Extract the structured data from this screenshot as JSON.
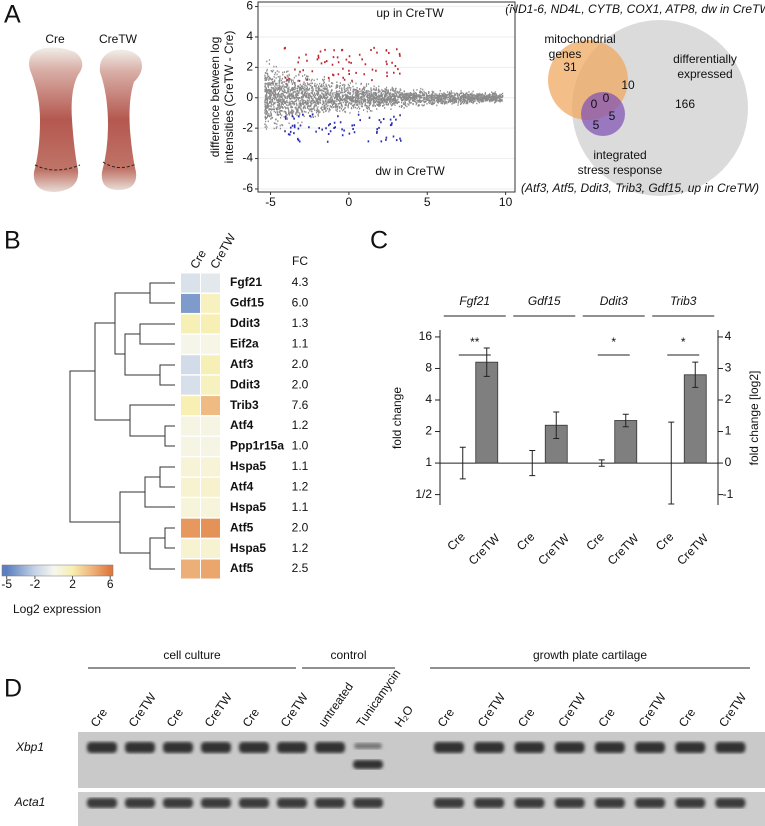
{
  "panel_labels": [
    "A",
    "B",
    "C",
    "D"
  ],
  "photos": {
    "labels": [
      "Cre",
      "CreTW"
    ]
  },
  "venn": {
    "note_top": "(ND1-6, ND4L, CYTB, COX1, ATP8, dw in CreTW)",
    "set_mito": [
      "mitochondrial",
      "genes"
    ],
    "set_diff": [
      "differentially",
      "expressed"
    ],
    "set_isr": [
      "integrated",
      "stress response"
    ],
    "note_bottom": "(Atf3, Atf5, Ddit3, Trib3, Gdf15, up in CreTW)",
    "counts": [
      31,
      10,
      166,
      0,
      0,
      5,
      5
    ]
  },
  "chart_data": [
    {
      "type": "scatter",
      "ylabel": [
        "difference between log",
        "intensities (CreTW - Cre)"
      ],
      "xlim": [
        -5.8,
        10.6
      ],
      "ylim": [
        -6.2,
        6.3
      ],
      "xticks": [
        -5,
        0,
        5,
        10
      ],
      "yticks": [
        -6,
        -4,
        -2,
        0,
        2,
        4,
        6
      ],
      "grid": true,
      "annotations": [
        {
          "text": "up in CreTW",
          "color": "#c0272d"
        },
        {
          "text": "dw in CreTW",
          "color": "#2b2bb0"
        }
      ]
    },
    {
      "type": "heatmap",
      "columns": [
        "Cre",
        "CreTW"
      ],
      "rows": [
        "Fgf21",
        "Gdf15",
        "Ddit3",
        "Eif2a",
        "Atf3",
        "Ddit3",
        "Trib3",
        "Atf4",
        "Ppp1r15a",
        "Hspa5",
        "Atf4",
        "Hspa5",
        "Atf5",
        "Hspa5",
        "Atf5"
      ],
      "values": [
        [
          -1.2,
          -0.8
        ],
        [
          -4,
          1.5
        ],
        [
          1.8,
          1.9
        ],
        [
          0.2,
          0.3
        ],
        [
          -1.5,
          1.8
        ],
        [
          -1.3,
          1.5
        ],
        [
          1.9,
          3.8
        ],
        [
          0.4,
          0.4
        ],
        [
          0.4,
          0.4
        ],
        [
          0.8,
          0.8
        ],
        [
          1,
          1.1
        ],
        [
          0.7,
          0.7
        ],
        [
          5,
          5.2
        ],
        [
          1,
          1
        ],
        [
          4.2,
          4.5
        ]
      ],
      "fc": {
        "name": "FC",
        "values": [
          4.3,
          6.0,
          1.3,
          1.1,
          2.0,
          2.0,
          7.6,
          1.2,
          1.0,
          1.1,
          1.2,
          1.1,
          2.0,
          1.2,
          2.5
        ],
        "value_labels": [
          "4.3",
          "6.0",
          "1.3",
          "1.1",
          "2.0",
          "2.0",
          "7.6",
          "1.2",
          "1.0",
          "1.1",
          "1.2",
          "1.1",
          "2.0",
          "1.2",
          "2.5"
        ],
        "colors": [
          "#9a9a9a",
          "#111111",
          "#9a9a9a",
          "#9a9a9a",
          "#111111",
          "#111111",
          "#111111",
          "#9a9a9a",
          "#9a9a9a",
          "#9a9a9a",
          "#9a9a9a",
          "#9a9a9a",
          "#111111",
          "#9a9a9a",
          "#111111"
        ]
      },
      "colorbar": {
        "label": "Log2 expression",
        "lim": [
          -5.5,
          6.3
        ],
        "ticks": [
          -5,
          -2,
          2,
          6
        ],
        "color_stops": [
          [
            -5,
            "#5b7fbf"
          ],
          [
            -2,
            "#c6d3e6"
          ],
          [
            0,
            "#f6f6f0"
          ],
          [
            2,
            "#f7efb0"
          ],
          [
            4,
            "#efb57e"
          ],
          [
            6,
            "#de7a3f"
          ]
        ]
      }
    },
    {
      "type": "bar",
      "categories": [
        "Fgf21",
        "Gdf15",
        "Ddit3",
        "Trib3"
      ],
      "series": [
        {
          "name": "Cre",
          "color": "#7f7f7f",
          "values": [
            0,
            0,
            0,
            0
          ],
          "errors": [
            0.5,
            0.4,
            0.1,
            1.3
          ]
        },
        {
          "name": "CreTW",
          "color": "#7f7f7f",
          "values": [
            3.2,
            1.2,
            1.35,
            2.8
          ],
          "errors": [
            0.45,
            0.42,
            0.2,
            0.4
          ]
        }
      ],
      "ylabel": "fold change",
      "y2label": "fold change [log2]",
      "ylim": [
        -1.33,
        4.22
      ],
      "y2lim": [
        -1.33,
        4.22
      ],
      "yticks": [
        {
          "value": 4,
          "label": "16"
        },
        {
          "value": 3,
          "label": "8"
        },
        {
          "value": 2,
          "label": "4"
        },
        {
          "value": 1,
          "label": "2"
        },
        {
          "value": 0,
          "label": "1"
        },
        {
          "value": -1,
          "label": "1/2"
        }
      ],
      "y2ticks": [
        4,
        3,
        2,
        1,
        0,
        -1
      ],
      "annotations": [
        {
          "category": "Fgf21",
          "text": "**"
        },
        {
          "category": "Ddit3",
          "text": "*"
        },
        {
          "category": "Trib3",
          "text": "*"
        }
      ]
    }
  ],
  "gel": {
    "groups": [
      "cell culture",
      "control",
      "growth plate cartilage"
    ],
    "lanes": [
      "Cre",
      "CreTW",
      "Cre",
      "CreTW",
      "Cre",
      "CreTW",
      "untreated",
      "Tunicamycin",
      "H₂O",
      "Cre",
      "CreTW",
      "Cre",
      "CreTW",
      "Cre",
      "CreTW",
      "Cre",
      "CreTW"
    ],
    "rows": [
      "Xbp1",
      "Acta1"
    ]
  }
}
